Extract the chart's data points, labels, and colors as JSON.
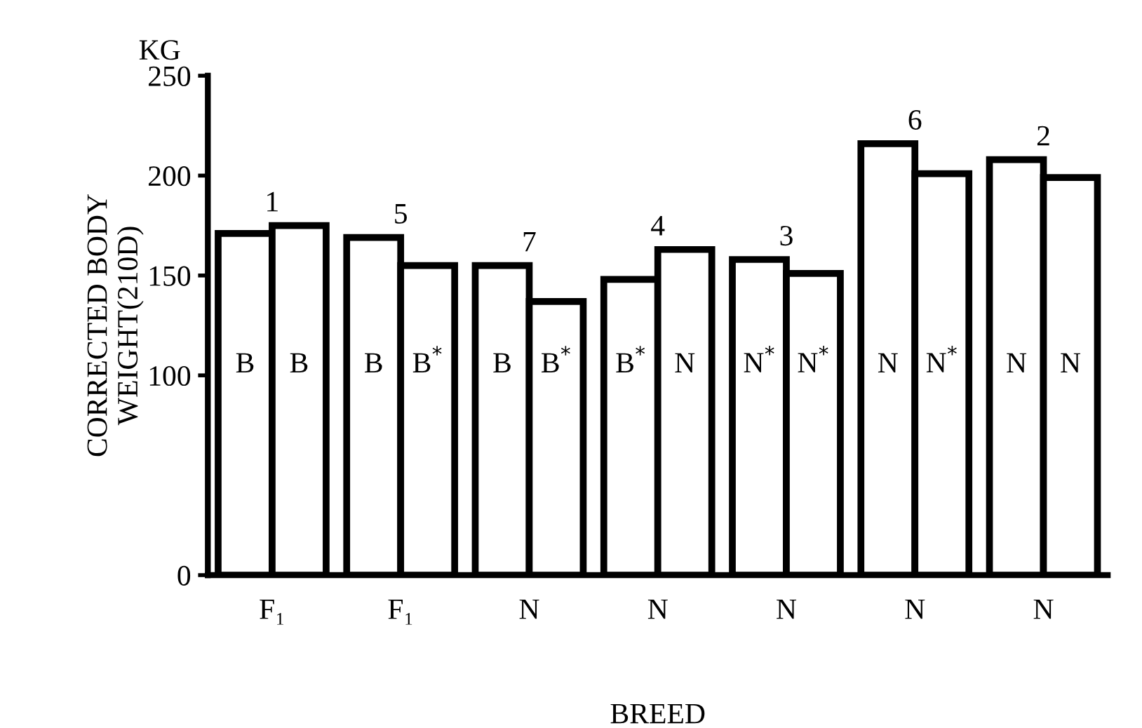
{
  "chart_data": {
    "type": "bar",
    "categories": [
      "F₁",
      "F₁",
      "N",
      "N",
      "N",
      "N",
      "N"
    ],
    "series": [
      {
        "color": "#ffffff",
        "values": [
          171,
          169,
          155,
          148,
          158,
          216,
          208
        ],
        "value_labels": [
          "B",
          "B",
          "B",
          "B$^{*}$",
          "N$^{*}$",
          "N",
          "N"
        ]
      },
      {
        "color": "#ffffff",
        "values": [
          175,
          155,
          137,
          163,
          151,
          201,
          199
        ],
        "value_labels": [
          "B",
          "B$^{*}$",
          "B$^{*}$",
          "N",
          "N$^{*}$",
          "N$^{*}$",
          "N"
        ]
      }
    ],
    "ylim": [
      0,
      250
    ],
    "yticks": [
      0,
      100,
      150,
      200,
      250
    ],
    "xlabel": "BREED",
    "ylabel": "CORRECTED BODY\nWEIGHT(210D)",
    "annotations": [
      "KG",
      "1",
      "5",
      "7",
      "4",
      "3",
      "6",
      "2"
    ],
    "grid": false,
    "legend": false
  }
}
